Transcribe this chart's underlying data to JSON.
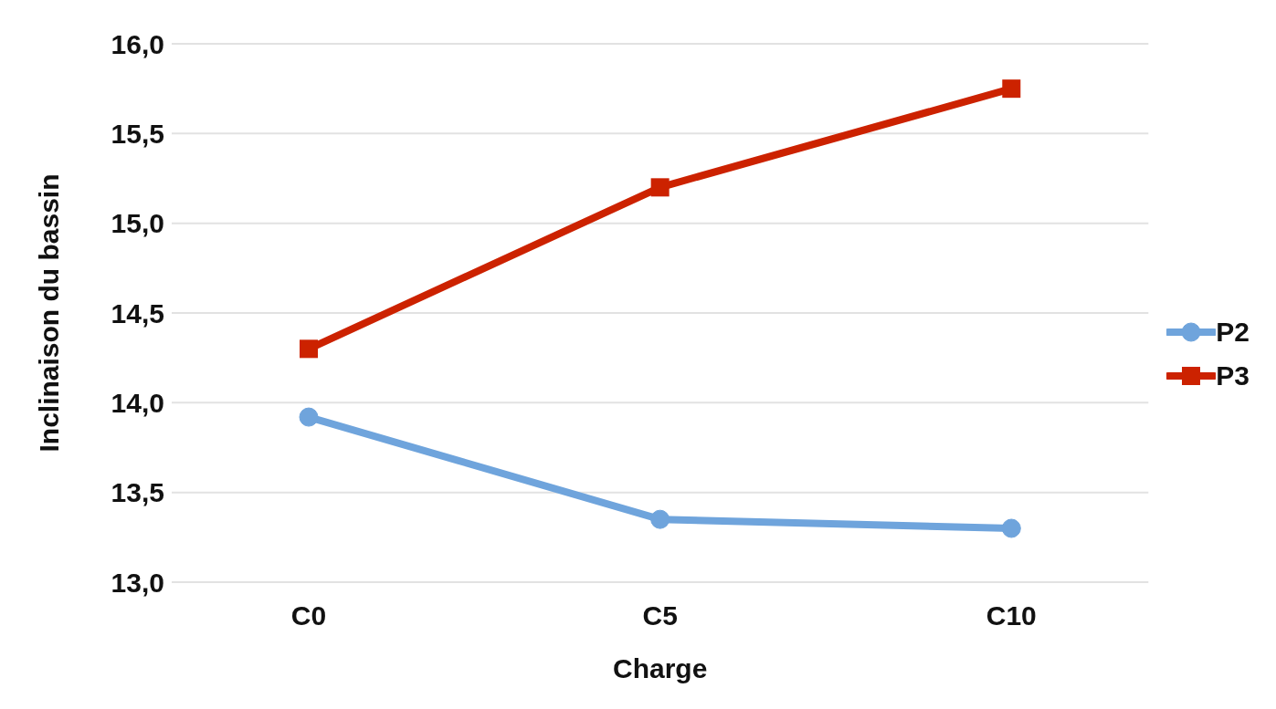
{
  "chart_data": {
    "type": "line",
    "xlabel": "Charge",
    "ylabel": "Inclinaison du bassin",
    "categories": [
      "C0",
      "C5",
      "C10"
    ],
    "series": [
      {
        "name": "P2",
        "color": "#6fa4dc",
        "values": [
          13.92,
          13.35,
          13.3
        ],
        "marker": "circle"
      },
      {
        "name": "P3",
        "color": "#cc2200",
        "values": [
          14.3,
          15.2,
          15.75
        ],
        "marker": "square"
      }
    ],
    "ylim": [
      13,
      16
    ],
    "yticks": [
      {
        "value": 13,
        "label": "13,0"
      },
      {
        "value": 13.5,
        "label": "13,5"
      },
      {
        "value": 14,
        "label": "14,0"
      },
      {
        "value": 14.5,
        "label": "14,5"
      },
      {
        "value": 15,
        "label": "15,0"
      },
      {
        "value": 15.5,
        "label": "15,5"
      },
      {
        "value": 16,
        "label": "16,0"
      }
    ],
    "grid": "y",
    "legend": "right",
    "line_style": "solid"
  }
}
